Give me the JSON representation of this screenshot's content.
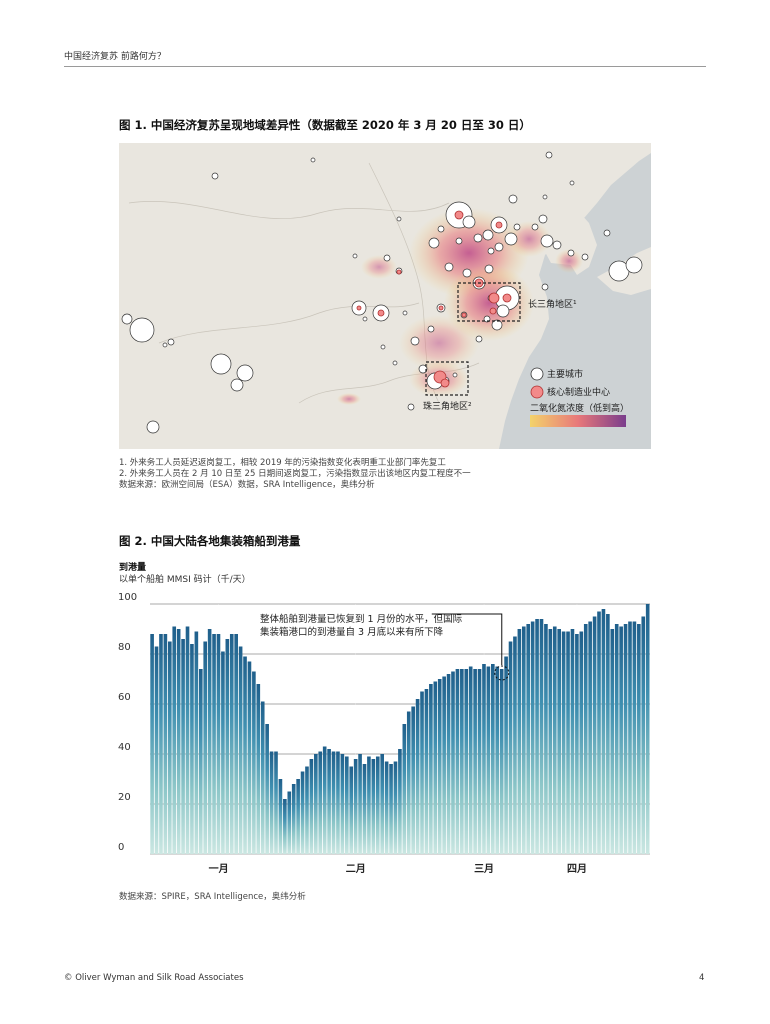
{
  "header": {
    "title": "中国经济复苏 前路何方？"
  },
  "figure1": {
    "title": "图 1.  中国经济复苏呈现地域差异性（数据截至 2020 年 3 月 20 日至 30 日）",
    "labels": {
      "yangtze": "长三角地区¹",
      "pearl": "珠三角地区²"
    },
    "legend": {
      "major_city": "主要城市",
      "manufacturing": "核心制造业中心",
      "no2": "二氧化氮浓度（低到高）"
    },
    "notes": [
      "1. 外来务工人员延迟返岗复工，相较 2019 年的污染指数变化表明重工业部门率先复工",
      "2. 外来务工人员在 2 月 10 日至 25 日期间返岗复工，污染指数显示出该地区内复工程度不一",
      "数据来源：欧洲空间局（ESA）数据，SRA Intelligence，奥纬分析"
    ],
    "colors": {
      "land": "#e9e6df",
      "sea": "#cdd2d4",
      "low": "#f3d36b",
      "mid": "#e8787a",
      "high": "#7a3d8c",
      "city": "#ffffff",
      "hub": "#f28a8a"
    }
  },
  "figure2": {
    "title": "图 2.  中国大陆各地集装箱船到港量",
    "ylabel_bold": "到港量",
    "ylabel": "以单个船舶 MMSI 码计（千/天）",
    "annotation_line1": "整体船舶到港量已恢复到 1 月份的水平，但国际",
    "annotation_line2": "集装箱港口的到港量自 3 月底以来有所下降",
    "source": "数据来源：SPIRE，SRA Intelligence，奥纬分析"
  },
  "chart_data": {
    "type": "bar",
    "title": "中国大陆各地集装箱船到港量",
    "ylabel": "以单个船舶 MMSI 码计（千/天）",
    "ylim": [
      0,
      100
    ],
    "yticks": [
      0,
      20,
      40,
      60,
      80,
      100
    ],
    "xtick_labels": [
      {
        "label": "一月",
        "day": 15
      },
      {
        "label": "二月",
        "day": 46
      },
      {
        "label": "三月",
        "day": 75
      },
      {
        "label": "四月",
        "day": 96
      }
    ],
    "values": [
      88,
      83,
      88,
      88,
      85,
      91,
      90,
      86,
      91,
      84,
      89,
      74,
      85,
      90,
      88,
      88,
      81,
      86,
      88,
      88,
      83,
      79,
      77,
      73,
      68,
      61,
      52,
      41,
      41,
      30,
      22,
      25,
      28,
      30,
      33,
      35,
      38,
      40,
      41,
      43,
      42,
      41,
      41,
      40,
      39,
      35,
      38,
      40,
      36,
      39,
      38,
      39,
      40,
      37,
      36,
      37,
      42,
      52,
      57,
      59,
      62,
      65,
      66,
      68,
      69,
      70,
      71,
      72,
      73,
      74,
      74,
      74,
      75,
      74,
      74,
      76,
      75,
      76,
      75,
      74,
      79,
      85,
      87,
      90,
      91,
      92,
      93,
      94,
      94,
      92,
      90,
      91,
      90,
      89,
      89,
      90,
      88,
      89,
      92,
      93,
      95,
      97,
      98,
      96,
      90,
      92,
      91,
      92,
      93,
      93,
      92,
      95,
      100
    ],
    "highlight_day": 79
  },
  "footer": {
    "left": "© Oliver Wyman and Silk Road Associates",
    "page": "4"
  }
}
